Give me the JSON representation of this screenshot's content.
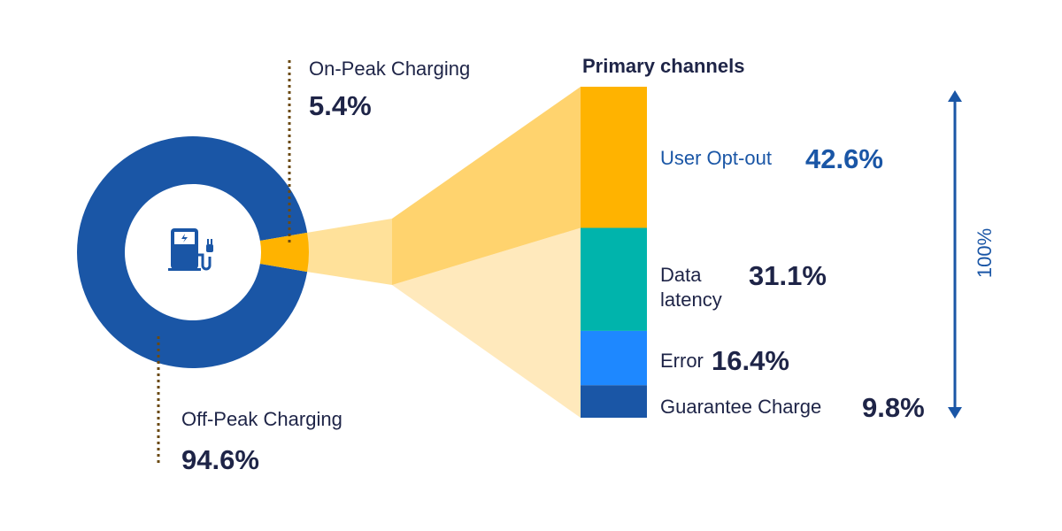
{
  "chart_data": {
    "type": "pie",
    "subtype": "pie-of-bar",
    "pie": {
      "slices": [
        {
          "name": "Off-Peak Charging",
          "value": 94.6,
          "label": "94.6%",
          "color": "#1A56A6"
        },
        {
          "name": "On-Peak Charging",
          "value": 5.4,
          "label": "5.4%",
          "color": "#FFB300"
        }
      ],
      "center_icon": "ev-charger-icon"
    },
    "bar": {
      "title": "Primary channels",
      "total_label": "100%",
      "segments": [
        {
          "name": "User Opt-out",
          "lines": [
            "User Opt-out"
          ],
          "value": 42.6,
          "label": "42.6%",
          "color": "#FFB300",
          "text_color": "#1A56A6"
        },
        {
          "name": "Data latency",
          "lines": [
            "Data",
            "latency"
          ],
          "value": 31.1,
          "label": "31.1%",
          "color": "#00B4AC",
          "text_color": "#1e2447"
        },
        {
          "name": "Error",
          "lines": [
            "Error"
          ],
          "value": 16.4,
          "label": "16.4%",
          "color": "#1E88FF",
          "text_color": "#1e2447"
        },
        {
          "name": "Guarantee Charge",
          "lines": [
            "Guarantee Charge"
          ],
          "value": 9.8,
          "label": "9.8%",
          "color": "#1A56A6",
          "text_color": "#1e2447"
        }
      ]
    },
    "colors": {
      "text": "#1e2447",
      "accent": "#1A56A6",
      "leader": "#6B4A12",
      "funnel_dark": "#FFD36E",
      "funnel_light": "#FFE9BC",
      "funnel_mid": "#FFE19A"
    }
  }
}
